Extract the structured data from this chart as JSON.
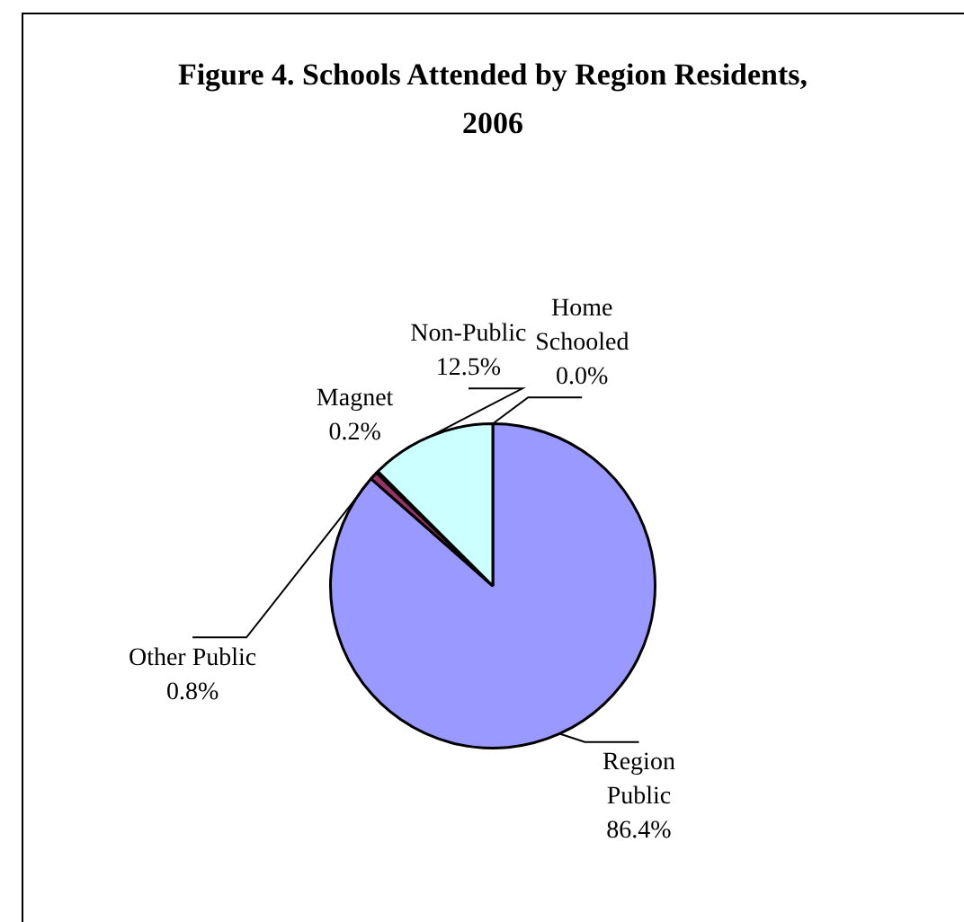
{
  "chart_data": {
    "type": "pie",
    "title": "Figure 4. Schools Attended by Region Residents, 2006",
    "categories": [
      "Region Public",
      "Other Public",
      "Magnet",
      "Non-Public",
      "Home Schooled"
    ],
    "values": [
      86.4,
      0.8,
      0.2,
      12.5,
      0.0
    ],
    "value_labels": [
      "86.4%",
      "0.8%",
      "0.2%",
      "12.5%",
      "0.0%"
    ],
    "colors": [
      "#9999ff",
      "#993366",
      "#ffffcc",
      "#ccffff",
      "#660066"
    ],
    "legend": false
  }
}
